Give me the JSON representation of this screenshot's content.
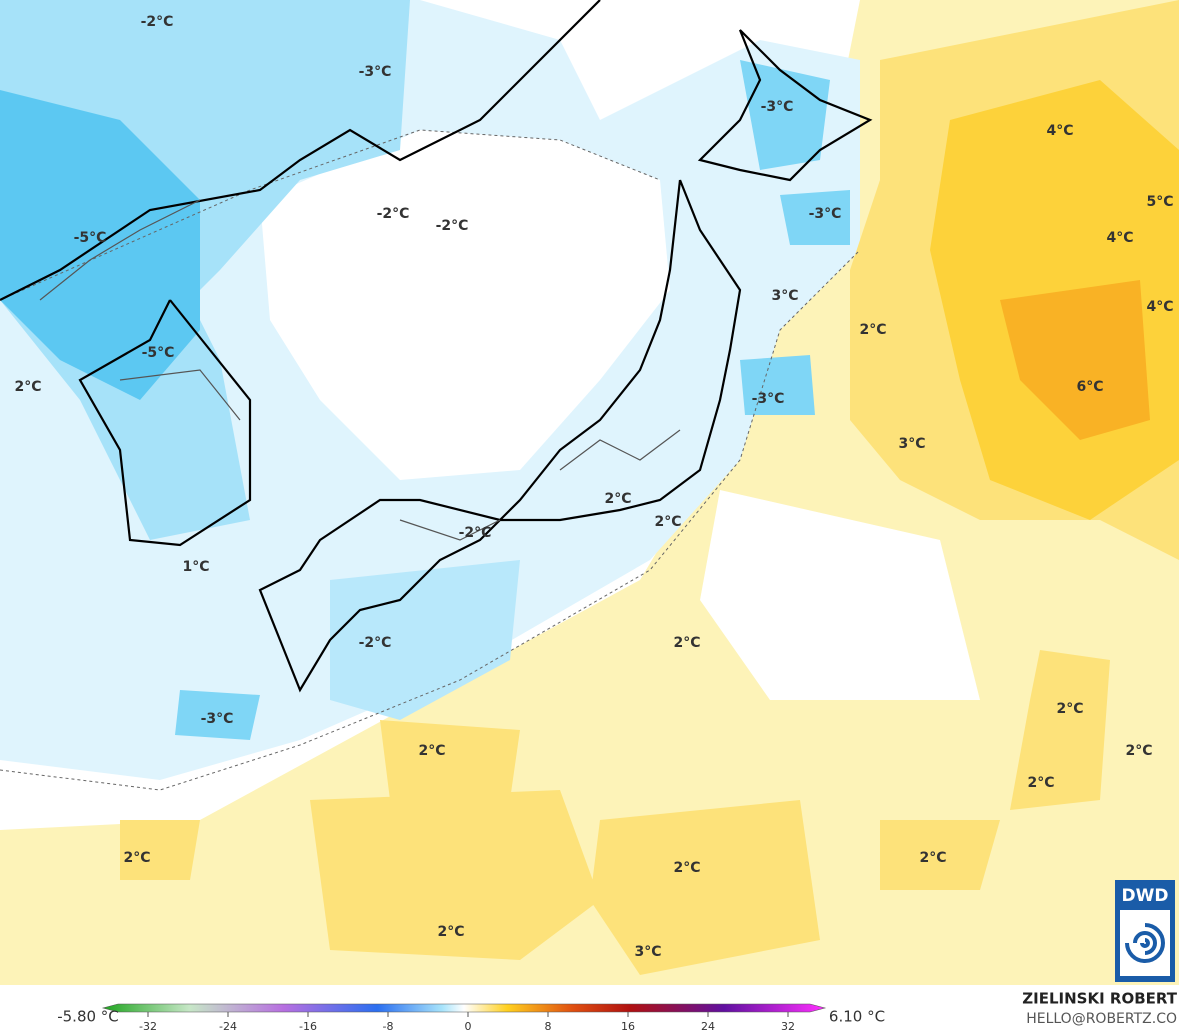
{
  "map": {
    "labels": [
      "-2°C",
      "-3°C",
      "-3°C",
      "4°C",
      "-2°C",
      "-2°C",
      "-3°C",
      "5°C",
      "-5°C",
      "4°C",
      "3°C",
      "2°C",
      "4°C",
      "-5°C",
      "2°C",
      "6°C",
      "-3°C",
      "3°C",
      "2°C",
      "2°C",
      "-2°C",
      "1°C",
      "2°C",
      "-2°C",
      "-3°C",
      "2°C",
      "2°C",
      "2°C",
      "2°C",
      "2°C",
      "2°C",
      "2°C",
      "2°C",
      "3°C"
    ]
  },
  "colorbar": {
    "min_label": "-5.80 °C",
    "max_label": "6.10 °C",
    "lim": [
      -35,
      35
    ],
    "ticks": [
      -32,
      -24,
      -16,
      -8,
      0,
      8,
      16,
      24,
      32
    ]
  },
  "credit": {
    "author": "ZIELINSKI ROBERT",
    "contact": "HELLO@ROBERTZ.CO",
    "logo": "DWD"
  }
}
